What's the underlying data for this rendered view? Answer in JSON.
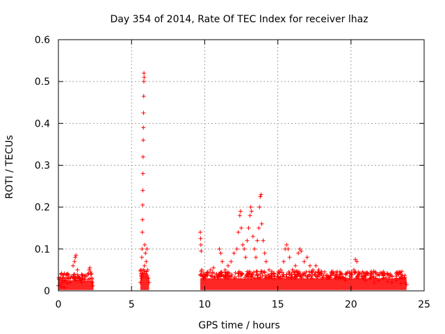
{
  "chart_data": {
    "type": "scatter",
    "title": "Day 354 of 2014, Rate Of TEC Index for receiver lhaz",
    "xlabel": "GPS time / hours",
    "ylabel": "ROTI / TECUs",
    "xlim": [
      0,
      25
    ],
    "ylim": [
      0,
      0.6
    ],
    "xticks": [
      0,
      5,
      10,
      15,
      20,
      25
    ],
    "yticks": [
      0,
      0.1,
      0.2,
      0.3,
      0.4,
      0.5,
      0.6
    ],
    "xtick_labels": [
      "0",
      "5",
      "10",
      "15",
      "20",
      "25"
    ],
    "ytick_labels": [
      "0",
      "0.1",
      "0.2",
      "0.3",
      "0.4",
      "0.5",
      "0.6"
    ],
    "grid": true,
    "marker": "+",
    "colors": {
      "series": "#ff0000",
      "grid": "#a0a0a0",
      "axis": "#000000"
    },
    "series": [
      {
        "name": "ROTI",
        "points": [
          [
            0.0,
            0.012
          ],
          [
            0.1,
            0.015
          ],
          [
            0.2,
            0.01
          ],
          [
            0.3,
            0.02
          ],
          [
            0.4,
            0.008
          ],
          [
            0.5,
            0.025
          ],
          [
            0.6,
            0.018
          ],
          [
            0.7,
            0.03
          ],
          [
            0.8,
            0.02
          ],
          [
            0.9,
            0.035
          ],
          [
            1.0,
            0.06
          ],
          [
            1.1,
            0.07
          ],
          [
            1.15,
            0.08
          ],
          [
            1.2,
            0.085
          ],
          [
            1.3,
            0.05
          ],
          [
            1.4,
            0.03
          ],
          [
            1.5,
            0.025
          ],
          [
            1.6,
            0.02
          ],
          [
            1.7,
            0.03
          ],
          [
            1.8,
            0.028
          ],
          [
            1.9,
            0.035
          ],
          [
            2.0,
            0.04
          ],
          [
            2.1,
            0.05
          ],
          [
            2.15,
            0.055
          ],
          [
            2.2,
            0.045
          ],
          [
            2.3,
            0.02
          ],
          [
            2.35,
            0.012
          ],
          [
            5.6,
            0.02
          ],
          [
            5.65,
            0.05
          ],
          [
            5.7,
            0.08
          ],
          [
            5.72,
            0.1
          ],
          [
            5.74,
            0.14
          ],
          [
            5.75,
            0.17
          ],
          [
            5.76,
            0.205
          ],
          [
            5.77,
            0.24
          ],
          [
            5.78,
            0.28
          ],
          [
            5.79,
            0.32
          ],
          [
            5.8,
            0.36
          ],
          [
            5.81,
            0.39
          ],
          [
            5.82,
            0.425
          ],
          [
            5.83,
            0.465
          ],
          [
            5.84,
            0.5
          ],
          [
            5.85,
            0.52
          ],
          [
            5.86,
            0.51
          ],
          [
            5.9,
            0.11
          ],
          [
            5.95,
            0.09
          ],
          [
            6.0,
            0.07
          ],
          [
            6.05,
            0.1
          ],
          [
            6.1,
            0.05
          ],
          [
            6.15,
            0.03
          ],
          [
            6.2,
            0.02
          ],
          [
            5.68,
            0.03
          ],
          [
            5.88,
            0.06
          ],
          [
            6.0,
            0.04
          ],
          [
            9.7,
            0.14
          ],
          [
            9.72,
            0.125
          ],
          [
            9.74,
            0.11
          ],
          [
            9.76,
            0.095
          ],
          [
            9.8,
            0.05
          ],
          [
            9.9,
            0.035
          ],
          [
            10.0,
            0.03
          ],
          [
            10.2,
            0.045
          ],
          [
            10.4,
            0.05
          ],
          [
            10.6,
            0.055
          ],
          [
            10.8,
            0.04
          ],
          [
            11.0,
            0.1
          ],
          [
            11.1,
            0.09
          ],
          [
            11.2,
            0.07
          ],
          [
            11.4,
            0.05
          ],
          [
            11.6,
            0.06
          ],
          [
            11.8,
            0.07
          ],
          [
            12.0,
            0.09
          ],
          [
            12.2,
            0.1
          ],
          [
            12.3,
            0.14
          ],
          [
            12.4,
            0.18
          ],
          [
            12.45,
            0.19
          ],
          [
            12.5,
            0.15
          ],
          [
            12.6,
            0.11
          ],
          [
            12.7,
            0.1
          ],
          [
            12.8,
            0.08
          ],
          [
            12.9,
            0.12
          ],
          [
            13.0,
            0.15
          ],
          [
            13.1,
            0.18
          ],
          [
            13.15,
            0.2
          ],
          [
            13.2,
            0.19
          ],
          [
            13.3,
            0.13
          ],
          [
            13.4,
            0.1
          ],
          [
            13.5,
            0.08
          ],
          [
            13.6,
            0.12
          ],
          [
            13.7,
            0.15
          ],
          [
            13.75,
            0.2
          ],
          [
            13.8,
            0.225
          ],
          [
            13.85,
            0.23
          ],
          [
            13.9,
            0.16
          ],
          [
            14.0,
            0.12
          ],
          [
            14.1,
            0.09
          ],
          [
            14.2,
            0.07
          ],
          [
            14.4,
            0.05
          ],
          [
            14.6,
            0.04
          ],
          [
            14.8,
            0.03
          ],
          [
            15.0,
            0.04
          ],
          [
            15.2,
            0.05
          ],
          [
            15.4,
            0.07
          ],
          [
            15.5,
            0.1
          ],
          [
            15.6,
            0.11
          ],
          [
            15.7,
            0.1
          ],
          [
            15.8,
            0.08
          ],
          [
            16.0,
            0.05
          ],
          [
            16.2,
            0.06
          ],
          [
            16.4,
            0.09
          ],
          [
            16.5,
            0.1
          ],
          [
            16.6,
            0.095
          ],
          [
            16.8,
            0.07
          ],
          [
            17.0,
            0.08
          ],
          [
            17.2,
            0.06
          ],
          [
            17.4,
            0.05
          ],
          [
            17.6,
            0.06
          ],
          [
            17.8,
            0.05
          ],
          [
            18.0,
            0.04
          ],
          [
            18.2,
            0.045
          ],
          [
            18.5,
            0.03
          ],
          [
            18.8,
            0.04
          ],
          [
            19.0,
            0.035
          ],
          [
            19.3,
            0.03
          ],
          [
            19.6,
            0.025
          ],
          [
            19.9,
            0.03
          ],
          [
            20.0,
            0.04
          ],
          [
            20.2,
            0.05
          ],
          [
            20.3,
            0.075
          ],
          [
            20.4,
            0.07
          ],
          [
            20.5,
            0.045
          ],
          [
            20.8,
            0.03
          ],
          [
            21.0,
            0.025
          ],
          [
            21.3,
            0.03
          ],
          [
            21.6,
            0.02
          ],
          [
            21.9,
            0.025
          ],
          [
            22.2,
            0.03
          ],
          [
            22.5,
            0.022
          ],
          [
            22.8,
            0.02
          ],
          [
            23.1,
            0.025
          ],
          [
            23.4,
            0.018
          ],
          [
            23.7,
            0.02
          ],
          [
            23.8,
            0.015
          ]
        ]
      }
    ],
    "bands": [
      {
        "x_start": 0.0,
        "x_end": 2.4,
        "y_max": 0.025
      },
      {
        "x_start": 5.6,
        "x_end": 6.2,
        "y_max": 0.035
      },
      {
        "x_start": 9.7,
        "x_end": 23.8,
        "y_max": 0.03
      }
    ]
  }
}
